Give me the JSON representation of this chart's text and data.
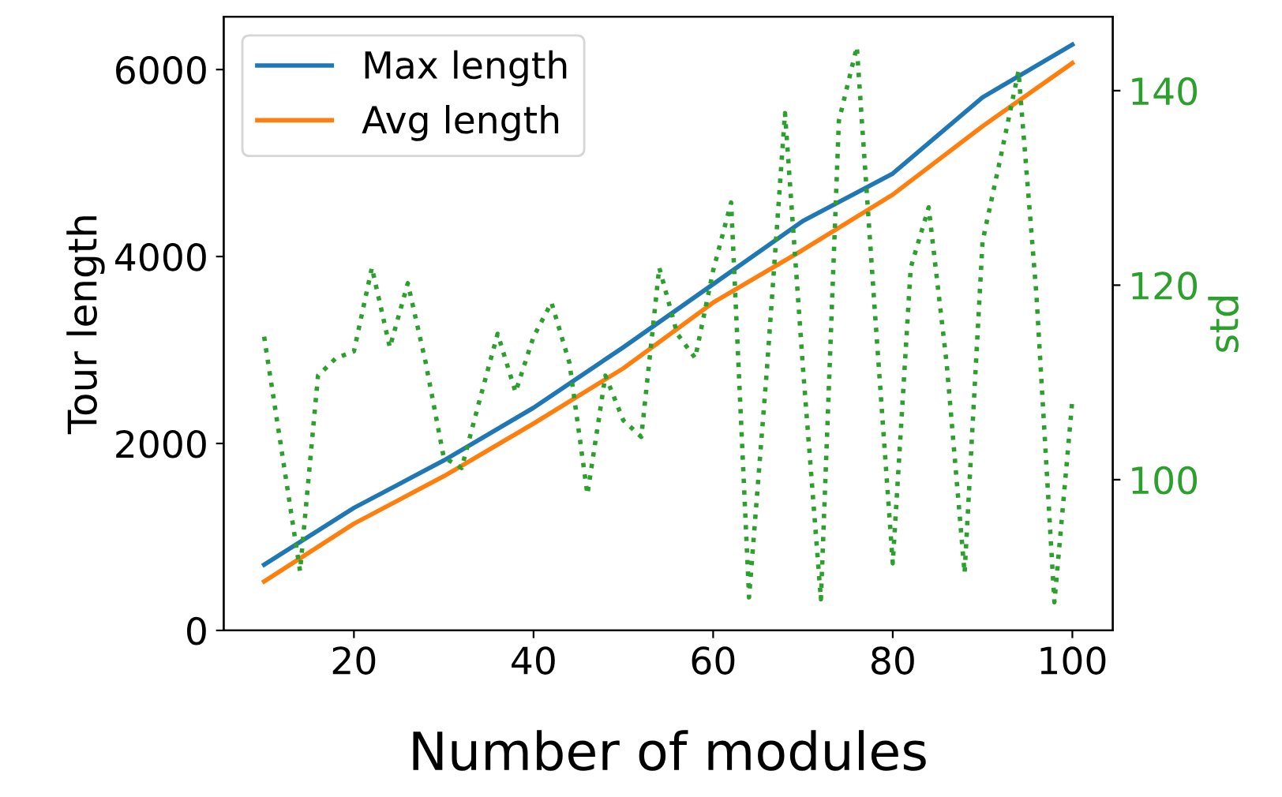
{
  "chart_data": {
    "type": "line",
    "xlabel": "Number of modules",
    "ylabel": "Tour length",
    "y2label": "std",
    "legend": "top left",
    "grid": false,
    "xlim": [
      5.5,
      104.5
    ],
    "xticks": [
      20,
      40,
      60,
      80,
      100
    ],
    "ylim": [
      0,
      6565
    ],
    "yticks": [
      0,
      2000,
      4000,
      6000
    ],
    "y2lim": [
      84.5,
      147.6
    ],
    "y2ticks": [
      100,
      120,
      140
    ],
    "series": [
      {
        "name": "Max length",
        "color": "#1f77b4",
        "line_style": "solid",
        "x": [
          10,
          20,
          30,
          40,
          50,
          60,
          70,
          80,
          90,
          100
        ],
        "values": [
          703,
          1311,
          1818,
          2382,
          3029,
          3704,
          4380,
          4887,
          5703,
          6267
        ]
      },
      {
        "name": "Avg length",
        "color": "#ff7f0e",
        "line_style": "solid",
        "x": [
          10,
          20,
          30,
          40,
          50,
          60,
          70,
          80,
          90,
          100
        ],
        "values": [
          524,
          1142,
          1649,
          2213,
          2804,
          3507,
          4071,
          4662,
          5394,
          6069
        ]
      },
      {
        "color": "#2ca02c",
        "axis": "y2",
        "line_style": "dotted",
        "x": [
          10,
          12,
          14,
          16,
          18,
          20,
          22,
          24,
          26,
          28,
          30,
          32,
          34,
          36,
          38,
          40,
          42,
          44,
          46,
          48,
          50,
          52,
          54,
          56,
          58,
          60,
          62,
          64,
          66,
          68,
          70,
          72,
          74,
          76,
          78,
          80,
          82,
          84,
          86,
          88,
          90,
          92,
          94,
          96,
          98,
          100
        ],
        "values": [
          114.7,
          102.7,
          90.6,
          110.7,
          112.5,
          113.2,
          121.8,
          113.6,
          120.2,
          112.0,
          102.3,
          101.2,
          108.2,
          115.0,
          109.0,
          114.7,
          118.2,
          112.0,
          98.5,
          110.7,
          106.1,
          104.4,
          121.8,
          115.0,
          112.5,
          121.5,
          128.5,
          87.9,
          111.5,
          137.7,
          111.5,
          87.7,
          136.9,
          144.5,
          117.4,
          91.4,
          121.8,
          128.0,
          112.0,
          90.4,
          124.5,
          133.1,
          142.0,
          119.0,
          87.4,
          108.2
        ]
      }
    ]
  }
}
